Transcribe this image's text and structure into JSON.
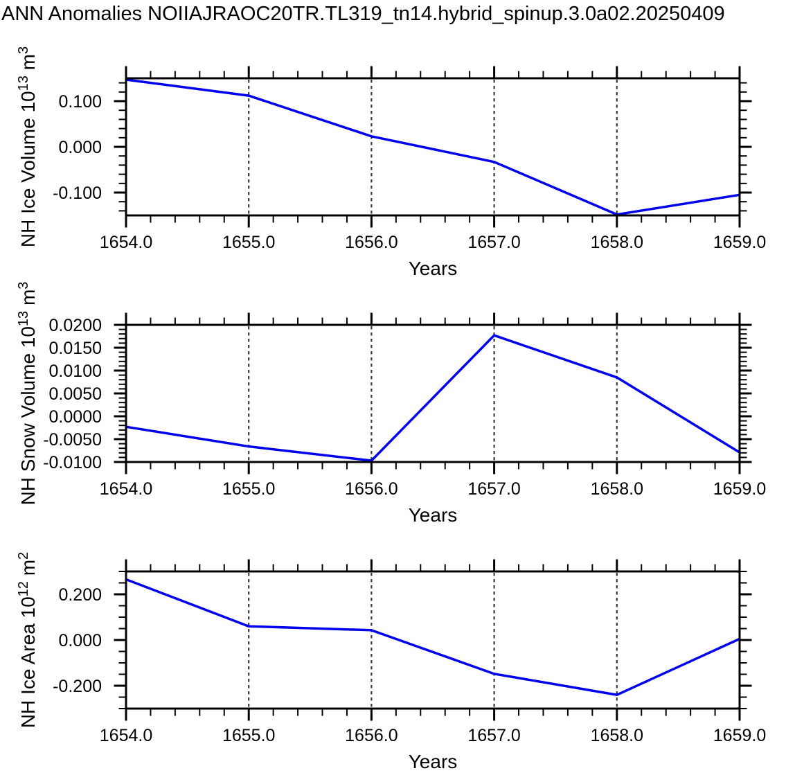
{
  "title": "ANN Anomalies NOIIAJRAOC20TR.TL319_tn14.hybrid_spinup.3.0a02.20250409",
  "colors": {
    "line": "#0000ee",
    "axis": "#000000",
    "grid": "#3b3b3b",
    "background": "#ffffff",
    "text": "#000000"
  },
  "chart_data": [
    {
      "type": "line",
      "ylabel": "NH Ice Volume 10¹³ m³",
      "ylabel_parts": [
        {
          "t": "NH Ice Volume 10"
        },
        {
          "t": "13",
          "sup": true
        },
        {
          "t": " m"
        },
        {
          "t": "3",
          "sup": true
        }
      ],
      "xlabel": "Years",
      "x": [
        1654,
        1655,
        1656,
        1657,
        1658,
        1659
      ],
      "values": [
        0.147,
        0.112,
        0.023,
        -0.033,
        -0.148,
        -0.105
      ],
      "xlim": [
        1654,
        1659
      ],
      "ylim": [
        -0.15,
        0.15
      ],
      "xtick_values": [
        1654,
        1655,
        1656,
        1657,
        1658,
        1659
      ],
      "xtick_labels": [
        "1654.0",
        "1655.0",
        "1656.0",
        "1657.0",
        "1658.0",
        "1659.0"
      ],
      "x_minor_step": 0.2,
      "ytick_values": [
        0.1,
        0.0,
        -0.1
      ],
      "ytick_labels": [
        "0.100",
        "0.000",
        "-0.100"
      ],
      "y_minor_step": 0.02,
      "grid_x": [
        1655,
        1656,
        1657,
        1658
      ],
      "grid_style": "vertical-dashed",
      "legend": "none"
    },
    {
      "type": "line",
      "ylabel": "NH Snow Volume 10¹³ m³",
      "ylabel_parts": [
        {
          "t": "NH Snow Volume 10"
        },
        {
          "t": "13",
          "sup": true
        },
        {
          "t": " m"
        },
        {
          "t": "3",
          "sup": true
        }
      ],
      "xlabel": "Years",
      "x": [
        1654,
        1655,
        1656,
        1657,
        1658,
        1659
      ],
      "values": [
        -0.0023,
        -0.0066,
        -0.0097,
        0.0177,
        0.0085,
        -0.0079
      ],
      "xlim": [
        1654,
        1659
      ],
      "ylim": [
        -0.01,
        0.02
      ],
      "xtick_values": [
        1654,
        1655,
        1656,
        1657,
        1658,
        1659
      ],
      "xtick_labels": [
        "1654.0",
        "1655.0",
        "1656.0",
        "1657.0",
        "1658.0",
        "1659.0"
      ],
      "x_minor_step": 0.2,
      "ytick_values": [
        0.02,
        0.015,
        0.01,
        0.005,
        0.0,
        -0.005,
        -0.01
      ],
      "ytick_labels": [
        "0.0200",
        "0.0150",
        "0.0100",
        "0.0050",
        "0.0000",
        "-0.0050",
        "-0.0100"
      ],
      "y_minor_step": 0.001,
      "grid_x": [
        1655,
        1656,
        1657,
        1658
      ],
      "grid_style": "vertical-dashed",
      "legend": "none"
    },
    {
      "type": "line",
      "ylabel": "NH Ice Area 10¹² m²",
      "ylabel_parts": [
        {
          "t": "NH Ice Area 10"
        },
        {
          "t": "12",
          "sup": true
        },
        {
          "t": " m"
        },
        {
          "t": "2",
          "sup": true
        }
      ],
      "xlabel": "Years",
      "x": [
        1654,
        1655,
        1656,
        1657,
        1658,
        1659
      ],
      "values": [
        0.265,
        0.06,
        0.043,
        -0.148,
        -0.24,
        0.005
      ],
      "xlim": [
        1654,
        1659
      ],
      "ylim": [
        -0.3,
        0.3
      ],
      "xtick_values": [
        1654,
        1655,
        1656,
        1657,
        1658,
        1659
      ],
      "xtick_labels": [
        "1654.0",
        "1655.0",
        "1656.0",
        "1657.0",
        "1658.0",
        "1659.0"
      ],
      "x_minor_step": 0.2,
      "ytick_values": [
        0.2,
        0.0,
        -0.2
      ],
      "ytick_labels": [
        "0.200",
        "0.000",
        "-0.200"
      ],
      "y_minor_step": 0.05,
      "grid_x": [
        1655,
        1656,
        1657,
        1658
      ],
      "grid_style": "vertical-dashed",
      "legend": "none"
    }
  ]
}
